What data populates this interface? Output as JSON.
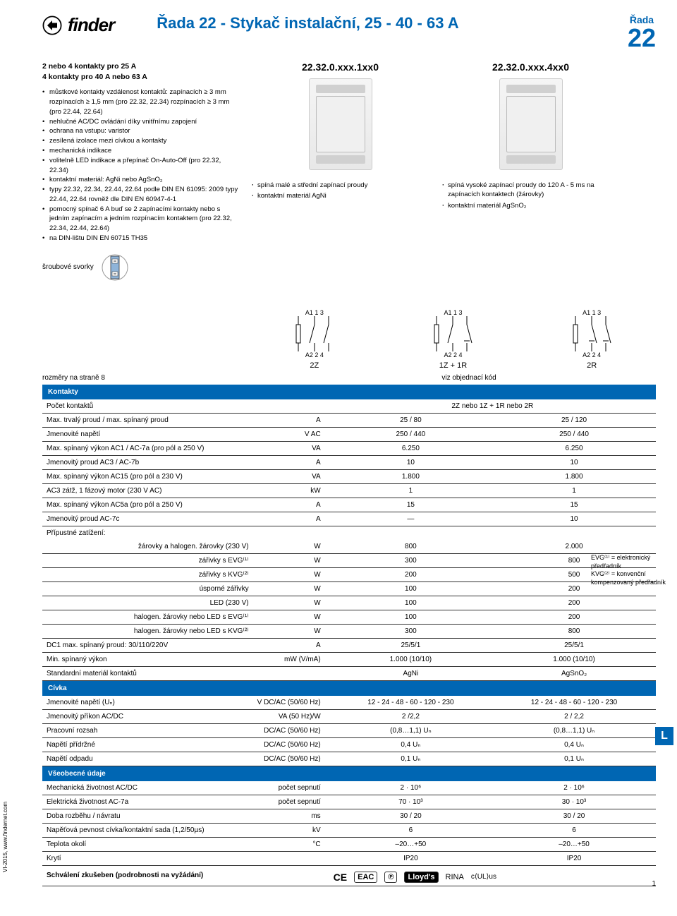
{
  "brand": "finder",
  "header": {
    "title": "Řada 22 - Stykač instalační, 25 - 40 - 63 A",
    "series_label": "Řada",
    "series_num": "22"
  },
  "intro": {
    "line1": "2 nebo 4 kontakty pro 25 A",
    "line2": "4 kontakty pro 40 A nebo 63 A"
  },
  "bullets": [
    "můstkové kontakty vzdálenost kontaktů: zapínacích ≥ 3 mm rozpínacích ≥ 1,5 mm (pro 22.32, 22.34) rozpínacích ≥ 3 mm (pro 22.44, 22.64)",
    "nehlučné AC/DC ovládání díky vnitřnímu zapojení",
    "ochrana na vstupu: varistor",
    "zesílená izolace mezi cívkou a kontakty",
    "mechanická indikace",
    "volitelně LED indikace a přepínač On-Auto-Off (pro 22.32, 22.34)",
    "kontaktní materiál: AgNi nebo AgSnO₂",
    "typy 22.32, 22.34, 22.44, 22.64 podle DIN EN 61095: 2009 typy 22.44, 22.64 rovněž dle DIN EN 60947-4-1",
    "pomocný spínač 6 A buď se 2 zapínacími kontakty nebo s jedním zapínacím a jedním rozpínacím kontaktem (pro 22.32, 22.34, 22.44, 22.64)",
    "na DIN-lištu DIN EN 60715 TH35"
  ],
  "models": {
    "left": {
      "code": "22.32.0.xxx.1xx0",
      "feat": [
        "spíná malé a střední zapínací proudy",
        "kontaktní materiál AgNi"
      ]
    },
    "right": {
      "code": "22.32.0.xxx.4xx0",
      "feat": [
        "spíná vysoké zapínací proudy do 120 A - 5 ms na zapínacích kontaktech (žárovky)",
        "kontaktní materiál AgSnO₂"
      ]
    }
  },
  "diagrams": {
    "labels": [
      "2Z",
      "1Z + 1R",
      "2R"
    ],
    "terminals_top": "A1  1   3",
    "terminals_bot": "A2  2   4"
  },
  "srouby": "šroubové svorky",
  "rozm": "rozměry na straně 8",
  "viz_obj": "viz objednací kód",
  "sections": {
    "kontakty": "Kontakty",
    "civka": "Cívka",
    "vseob": "Všeobecné údaje"
  },
  "rows": [
    {
      "label": "Počet kontaktů",
      "unit": "",
      "v1": "2Z nebo 1Z + 1R nebo 2R",
      "span": true
    },
    {
      "label": "Max. trvalý proud / max. spínaný proud",
      "unit": "A",
      "v1": "25 / 80",
      "v2": "25 / 120"
    },
    {
      "label": "Jmenovité napětí",
      "unit": "V AC",
      "v1": "250 / 440",
      "v2": "250 / 440"
    },
    {
      "label": "Max. spínaný výkon AC1 / AC-7a (pro pól a 250 V)",
      "unit": "VA",
      "v1": "6.250",
      "v2": "6.250"
    },
    {
      "label": "Jmenovitý proud AC3 / AC-7b",
      "unit": "A",
      "v1": "10",
      "v2": "10"
    },
    {
      "label": "Max. spínaný výkon AC15 (pro pól a 230 V)",
      "unit": "VA",
      "v1": "1.800",
      "v2": "1.800"
    },
    {
      "label": "AC3 zátž, 1 fázový motor (230 V AC)",
      "unit": "kW",
      "v1": "1",
      "v2": "1"
    },
    {
      "label": "Max. spínaný výkon AC5a (pro pól a 250 V)",
      "unit": "A",
      "v1": "15",
      "v2": "15"
    },
    {
      "label": "Jmenovitý proud AC-7c",
      "unit": "A",
      "v1": "—",
      "v2": "10"
    },
    {
      "label": "Přípustné zatížení:",
      "unit": "",
      "v1": "",
      "v2": "",
      "noborder": true
    },
    {
      "label": "žárovky a halogen. žárovky (230 V)",
      "unit": "W",
      "v1": "800",
      "v2": "2.000",
      "indent": true
    },
    {
      "label": "zářivky s EVG⁽¹⁾",
      "unit": "W",
      "v1": "300",
      "v2": "800",
      "indent": true
    },
    {
      "label": "zářivky s KVG⁽²⁾",
      "unit": "W",
      "v1": "200",
      "v2": "500",
      "indent": true
    },
    {
      "label": "úsporné zářivky",
      "unit": "W",
      "v1": "100",
      "v2": "200",
      "indent": true
    },
    {
      "label": "LED (230 V)",
      "unit": "W",
      "v1": "100",
      "v2": "200",
      "indent": true
    },
    {
      "label": "halogen. žárovky nebo LED s EVG⁽¹⁾",
      "unit": "W",
      "v1": "100",
      "v2": "200",
      "indent": true
    },
    {
      "label": "halogen. žárovky nebo LED s KVG⁽²⁾",
      "unit": "W",
      "v1": "300",
      "v2": "800",
      "indent": true
    },
    {
      "label": "DC1 max. spínaný proud: 30/110/220V",
      "unit": "A",
      "v1": "25/5/1",
      "v2": "25/5/1"
    },
    {
      "label": "Min. spínaný výkon",
      "unit": "mW (V/mA)",
      "v1": "1.000 (10/10)",
      "v2": "1.000 (10/10)"
    },
    {
      "label": "Standardní materiál kontaktů",
      "unit": "",
      "v1": "AgNi",
      "v2": "AgSnO₂"
    }
  ],
  "civka_rows": [
    {
      "label": "Jmenovité napětí (Uₙ)",
      "unit": "V DC/AC (50/60 Hz)",
      "v1": "12 - 24 - 48 - 60 - 120 - 230",
      "v2": "12 - 24 - 48 - 60 - 120 - 230"
    },
    {
      "label": "Jmenovitý příkon AC/DC",
      "unit": "VA (50 Hz)/W",
      "v1": "2 /2,2",
      "v2": "2 / 2,2"
    },
    {
      "label": "Pracovní rozsah",
      "unit": "DC/AC (50/60 Hz)",
      "v1": "(0,8…1,1) Uₙ",
      "v2": "(0,8…1,1) Uₙ"
    },
    {
      "label": "Napětí přídržné",
      "unit": "DC/AC (50/60 Hz)",
      "v1": "0,4 Uₙ",
      "v2": "0,4 Uₙ"
    },
    {
      "label": "Napětí odpadu",
      "unit": "DC/AC (50/60 Hz)",
      "v1": "0,1 Uₙ",
      "v2": "0,1 Uₙ"
    }
  ],
  "vseob_rows": [
    {
      "label": "Mechanická životnost AC/DC",
      "unit": "počet sepnutí",
      "v1": "2 · 10⁶",
      "v2": "2 · 10⁶"
    },
    {
      "label": "Elektrická životnost AC-7a",
      "unit": "počet sepnutí",
      "v1": "70 · 10³",
      "v2": "30 · 10³"
    },
    {
      "label": "Doba rozběhu / návratu",
      "unit": "ms",
      "v1": "30 / 20",
      "v2": "30 / 20"
    },
    {
      "label": "Napěťová pevnost cívka/kontaktní sada (1,2/50µs)",
      "unit": "kV",
      "v1": "6",
      "v2": "6"
    },
    {
      "label": "Teplota okolí",
      "unit": "°C",
      "v1": "–20…+50",
      "v2": "–20…+50"
    },
    {
      "label": "Krytí",
      "unit": "",
      "v1": "IP20",
      "v2": "IP20"
    }
  ],
  "approval_label": "Schválení zkušeben (podrobnosti na vyžádání)",
  "side_note": {
    "l1": "EVG⁽¹⁾ = elektronický předřadník",
    "l2": "KVG⁽²⁾ = konvenční kompenzovaný předřadník"
  },
  "footer": "VI-2015, www.findernet.com",
  "page_num": "1",
  "side_L": "L"
}
